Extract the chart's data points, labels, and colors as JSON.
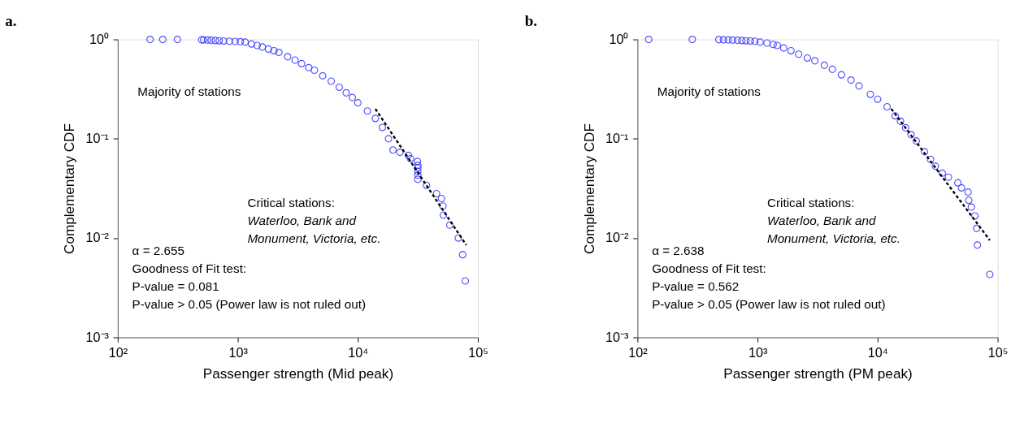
{
  "chart_data": [
    {
      "type": "scatter",
      "title": "a.",
      "xlabel": "Passenger strength (Mid peak)",
      "ylabel": "Complementary CDF",
      "log": "xy",
      "grid": false,
      "marker": "circle",
      "xlim": [
        100,
        100000
      ],
      "ylim": [
        0.001,
        1
      ],
      "xticks": [
        {
          "value": 100,
          "label": "10²"
        },
        {
          "value": 1000,
          "label": "10³"
        },
        {
          "value": 10000,
          "label": "10⁴"
        },
        {
          "value": 100000,
          "label": "10⁵"
        }
      ],
      "yticks": [
        {
          "value": 0.001,
          "label": "10⁻³"
        },
        {
          "value": 0.01,
          "label": "10⁻²"
        },
        {
          "value": 0.1,
          "label": "10⁻¹"
        },
        {
          "value": 1,
          "label": "10⁰"
        }
      ],
      "series": [
        {
          "color": "#3333ff",
          "x": [
            186,
            237,
            314,
            500,
            520,
            560,
            600,
            650,
            700,
            760,
            850,
            950,
            1050,
            1150,
            1300,
            1450,
            1600,
            1800,
            2000,
            2200,
            2600,
            3000,
            3400,
            3900,
            4340,
            5100,
            6000,
            7000,
            8000,
            9000,
            10000,
            12000,
            14000,
            16000,
            18000,
            19600,
            22400,
            26300,
            27500,
            31400,
            31600,
            31600,
            31600,
            31600,
            31600,
            37300,
            45200,
            49700,
            51100,
            51600,
            58300,
            68600,
            74600,
            78500
          ],
          "values": [
            1,
            1,
            1,
            0.99,
            0.99,
            0.985,
            0.98,
            0.975,
            0.97,
            0.965,
            0.96,
            0.955,
            0.95,
            0.94,
            0.9,
            0.87,
            0.84,
            0.8,
            0.77,
            0.74,
            0.67,
            0.62,
            0.57,
            0.52,
            0.49,
            0.43,
            0.38,
            0.33,
            0.29,
            0.26,
            0.23,
            0.19,
            0.16,
            0.13,
            0.1,
            0.077,
            0.073,
            0.068,
            0.063,
            0.059,
            0.054,
            0.051,
            0.047,
            0.043,
            0.039,
            0.034,
            0.028,
            0.025,
            0.021,
            0.017,
            0.0135,
            0.01,
            0.0068,
            0.0037
          ]
        },
        {
          "type": "line",
          "color": "#000000",
          "line_style": "dashed",
          "marker": "none",
          "x": [
            14000,
            80000
          ],
          "values": [
            0.2,
            0.0085
          ]
        }
      ],
      "annotations": [
        "Majority of stations",
        "Critical stations:",
        "Waterloo, Bank and",
        "Monument, Victoria, etc.",
        "α = 2.655",
        "Goodness of Fit test:",
        "P-value = 0.081",
        "P-value > 0.05 (Power law is not ruled out)"
      ]
    },
    {
      "type": "scatter",
      "title": "b.",
      "xlabel": "Passenger strength (PM peak)",
      "ylabel": "Complementary CDF",
      "log": "xy",
      "grid": false,
      "marker": "circle",
      "xlim": [
        100,
        100000
      ],
      "ylim": [
        0.001,
        1
      ],
      "xticks": [
        {
          "value": 100,
          "label": "10²"
        },
        {
          "value": 1000,
          "label": "10³"
        },
        {
          "value": 10000,
          "label": "10⁴"
        },
        {
          "value": 100000,
          "label": "10⁵"
        }
      ],
      "yticks": [
        {
          "value": 0.001,
          "label": "10⁻³"
        },
        {
          "value": 0.01,
          "label": "10⁻²"
        },
        {
          "value": 0.1,
          "label": "10⁻¹"
        },
        {
          "value": 1,
          "label": "10⁰"
        }
      ],
      "series": [
        {
          "color": "#3333ff",
          "x": [
            124,
            286,
            476,
            520,
            570,
            620,
            680,
            740,
            800,
            870,
            950,
            1050,
            1200,
            1350,
            1460,
            1650,
            1900,
            2200,
            2600,
            3000,
            3600,
            4200,
            5000,
            6000,
            7000,
            8700,
            10000,
            12000,
            14000,
            15500,
            17100,
            19000,
            21000,
            24600,
            27600,
            30300,
            34600,
            38900,
            46600,
            50000,
            56700,
            57500,
            60400,
            64600,
            66800,
            67800,
            86000
          ],
          "values": [
            1,
            1,
            0.995,
            0.99,
            0.99,
            0.985,
            0.98,
            0.975,
            0.97,
            0.965,
            0.96,
            0.94,
            0.92,
            0.89,
            0.87,
            0.82,
            0.77,
            0.71,
            0.65,
            0.61,
            0.55,
            0.5,
            0.44,
            0.39,
            0.34,
            0.28,
            0.25,
            0.21,
            0.17,
            0.15,
            0.129,
            0.11,
            0.095,
            0.074,
            0.062,
            0.053,
            0.045,
            0.041,
            0.036,
            0.032,
            0.029,
            0.024,
            0.0205,
            0.0167,
            0.0125,
            0.0085,
            0.0043
          ]
        },
        {
          "type": "line",
          "color": "#000000",
          "line_style": "dashed",
          "marker": "none",
          "x": [
            13000,
            86000
          ],
          "values": [
            0.2,
            0.0095
          ]
        }
      ],
      "annotations": [
        "Majority of stations",
        "Critical stations:",
        "Waterloo, Bank and",
        "Monument, Victoria, etc.",
        "α = 2.638",
        "Goodness of Fit test:",
        "P-value = 0.562",
        "P-value > 0.05 (Power law is not ruled out)"
      ]
    }
  ]
}
